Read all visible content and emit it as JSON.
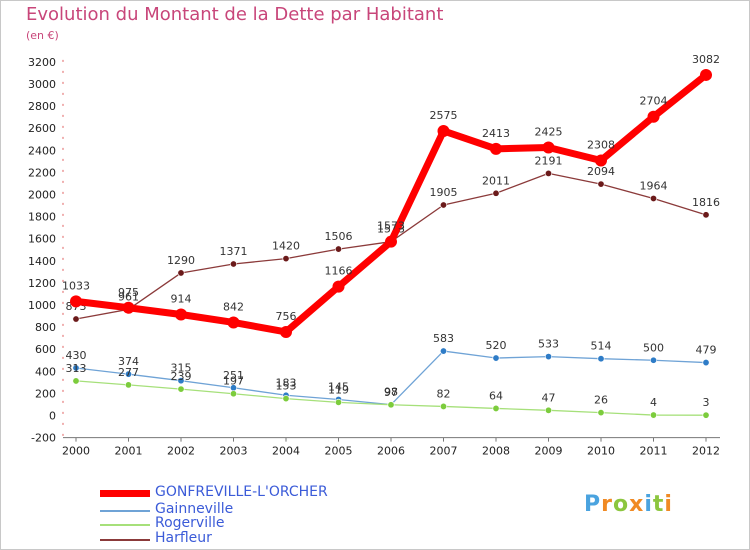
{
  "chart_data": {
    "type": "line",
    "title": "Evolution du Montant de la Dette par Habitant",
    "subtitle": "(en €)",
    "categories": [
      "2000",
      "2001",
      "2002",
      "2003",
      "2004",
      "2005",
      "2006",
      "2007",
      "2008",
      "2009",
      "2010",
      "2011",
      "2012"
    ],
    "ylim": [
      -200,
      3200
    ],
    "yticks": [
      -200,
      0,
      200,
      400,
      600,
      800,
      1000,
      1200,
      1400,
      1600,
      1800,
      2000,
      2200,
      2400,
      2600,
      2800,
      3000,
      3200
    ],
    "grid": false,
    "legend_position": "bottom-left",
    "series": [
      {
        "name": "Harfleur",
        "color": "#8b3a3a",
        "marker": "#6b1a1a",
        "width": 1.3,
        "values": [
          873,
          961,
          1290,
          1371,
          1420,
          1506,
          1573,
          1905,
          2011,
          2191,
          2094,
          1964,
          1816
        ],
        "labels": [
          "873",
          "961",
          "1290",
          "1371",
          "1420",
          "1506",
          "1573",
          "1905",
          "2011",
          "2191",
          "2094",
          "1964",
          "1816"
        ]
      },
      {
        "name": "Gainneville",
        "color": "#6fa3d6",
        "marker": "#2e7cc7",
        "width": 1.3,
        "values": [
          430,
          374,
          315,
          251,
          183,
          145,
          98,
          583,
          520,
          533,
          514,
          500,
          479
        ],
        "labels": [
          "430",
          "374",
          "315",
          "251",
          "183",
          "145",
          "98",
          "583",
          "520",
          "533",
          "514",
          "500",
          "479"
        ]
      },
      {
        "name": "Rogerville",
        "color": "#a6e07a",
        "marker": "#7ccc3c",
        "width": 1.3,
        "values": [
          313,
          277,
          239,
          197,
          153,
          119,
          97,
          82,
          64,
          47,
          26,
          4,
          3
        ],
        "labels": [
          "313",
          "277",
          "239",
          "197",
          "153",
          "119",
          "97",
          "82",
          "64",
          "47",
          "26",
          "4",
          "3"
        ]
      },
      {
        "name": "GONFREVILLE-L'ORCHER",
        "color": "#ff0000",
        "marker": "#ff0000",
        "width": 7,
        "values": [
          1033,
          975,
          914,
          842,
          756,
          1166,
          1573,
          2575,
          2413,
          2425,
          2308,
          2704,
          3082
        ],
        "labels": [
          "1033",
          "975",
          "914",
          "842",
          "756",
          "1166",
          "1573",
          "2575",
          "2413",
          "2425",
          "2308",
          "2704",
          "3082"
        ]
      }
    ],
    "legend": [
      "GONFREVILLE-L'ORCHER",
      "Gainneville",
      "Rogerville",
      "Harfleur"
    ]
  },
  "logo": {
    "letters": [
      "P",
      "r",
      "o",
      "x",
      "i",
      "t",
      "i"
    ],
    "colors": [
      "#4aa3df",
      "#f08a24",
      "#8cc63f",
      "#f08a24",
      "#4aa3df",
      "#8cc63f",
      "#f08a24"
    ]
  }
}
